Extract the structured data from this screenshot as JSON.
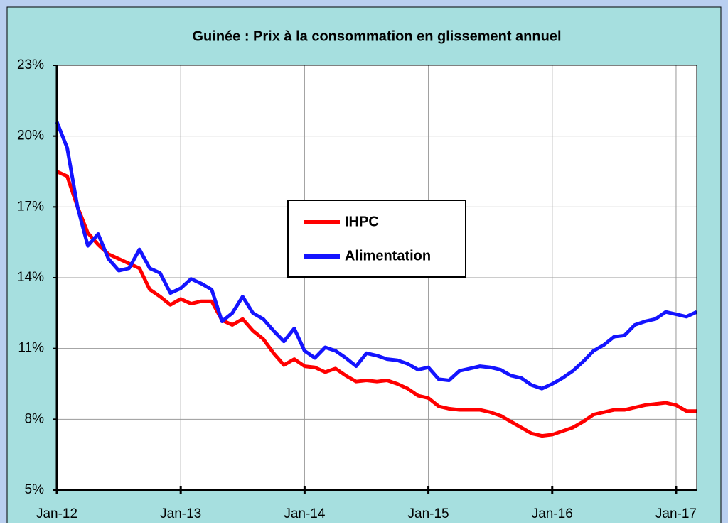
{
  "chart_data": {
    "type": "line",
    "title": "Guinée : Prix à la consommation en glissement annuel",
    "categories": [
      "Jan-12",
      null,
      null,
      null,
      null,
      null,
      null,
      null,
      null,
      null,
      null,
      null,
      "Jan-13",
      null,
      null,
      null,
      null,
      null,
      null,
      null,
      null,
      null,
      null,
      null,
      "Jan-14",
      null,
      null,
      null,
      null,
      null,
      null,
      null,
      null,
      null,
      null,
      null,
      "Jan-15",
      null,
      null,
      null,
      null,
      null,
      null,
      null,
      null,
      null,
      null,
      null,
      "Jan-16",
      null,
      null,
      null,
      null,
      null,
      null,
      null,
      null,
      null,
      null,
      null,
      "Jan-17",
      null,
      null
    ],
    "series": [
      {
        "name": "IHPC",
        "color": "#ff0000",
        "values": [
          18.5,
          18.3,
          17.0,
          15.9,
          15.4,
          15.0,
          14.8,
          14.6,
          14.4,
          13.5,
          13.2,
          12.85,
          13.1,
          12.9,
          13.0,
          13.0,
          12.2,
          12.0,
          12.25,
          11.75,
          11.4,
          10.8,
          10.3,
          10.55,
          10.25,
          10.2,
          10.0,
          10.15,
          9.85,
          9.6,
          9.65,
          9.6,
          9.65,
          9.5,
          9.3,
          9.0,
          8.9,
          8.55,
          8.45,
          8.4,
          8.4,
          8.4,
          8.3,
          8.15,
          7.9,
          7.65,
          7.4,
          7.3,
          7.35,
          7.5,
          7.65,
          7.9,
          8.2,
          8.3,
          8.4,
          8.4,
          8.5,
          8.6,
          8.65,
          8.7,
          8.6,
          8.35,
          8.35
        ]
      },
      {
        "name": "Alimentation",
        "color": "#1414ff",
        "values": [
          20.6,
          19.5,
          17.0,
          15.35,
          15.85,
          14.8,
          14.3,
          14.4,
          15.2,
          14.4,
          14.2,
          13.35,
          13.55,
          13.95,
          13.75,
          13.5,
          12.15,
          12.5,
          13.2,
          12.5,
          12.25,
          11.75,
          11.3,
          11.85,
          10.9,
          10.6,
          11.05,
          10.9,
          10.6,
          10.25,
          10.8,
          10.7,
          10.55,
          10.5,
          10.35,
          10.1,
          10.2,
          9.7,
          9.65,
          10.05,
          10.15,
          10.25,
          10.2,
          10.1,
          9.85,
          9.75,
          9.45,
          9.3,
          9.5,
          9.75,
          10.05,
          10.45,
          10.9,
          11.15,
          11.5,
          11.55,
          12.0,
          12.15,
          12.25,
          12.55,
          12.45,
          12.35,
          12.55
        ]
      }
    ],
    "ylim": [
      5,
      23
    ],
    "yticks": [
      {
        "value": 5,
        "label": "5%"
      },
      {
        "value": 8,
        "label": "8%"
      },
      {
        "value": 11,
        "label": "11%"
      },
      {
        "value": 14,
        "label": "14%"
      },
      {
        "value": 17,
        "label": "17%"
      },
      {
        "value": 20,
        "label": "20%"
      },
      {
        "value": 23,
        "label": "23%"
      }
    ],
    "grid": true
  }
}
